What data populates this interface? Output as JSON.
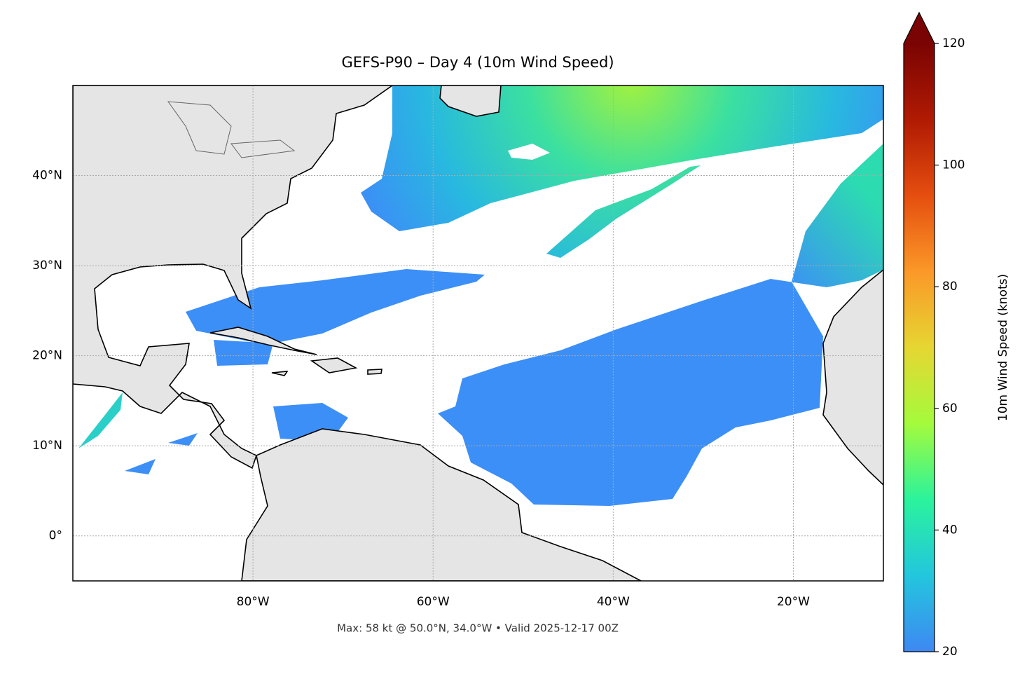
{
  "chart_data": {
    "type": "map",
    "title": "GEFS-P90 – Day 4 (10m Wind Speed)",
    "footnote": "Max: 58 kt @ 50.0°N, 34.0°W • Valid 2025-12-17 00Z",
    "colorbar_label": "10m Wind Speed (knots)",
    "xlim": [
      -100,
      -10
    ],
    "ylim": [
      -5,
      50
    ],
    "xticks": [
      {
        "value": -80,
        "label": "80°W"
      },
      {
        "value": -60,
        "label": "60°W"
      },
      {
        "value": -40,
        "label": "40°W"
      },
      {
        "value": -20,
        "label": "20°W"
      }
    ],
    "yticks": [
      {
        "value": 0,
        "label": "0°"
      },
      {
        "value": 10,
        "label": "10°N"
      },
      {
        "value": 20,
        "label": "20°N"
      },
      {
        "value": 30,
        "label": "30°N"
      },
      {
        "value": 40,
        "label": "40°N"
      }
    ],
    "grid": true,
    "colorbar_lim": [
      20,
      120
    ],
    "colorbar_ticks": [
      20,
      40,
      60,
      80,
      100,
      120
    ],
    "colormap": [
      "#3e88f3",
      "#23c6dd",
      "#2af39c",
      "#a4fb3c",
      "#e6d632",
      "#fb9828",
      "#e54e0f",
      "#b01a03",
      "#7a0403"
    ]
  }
}
